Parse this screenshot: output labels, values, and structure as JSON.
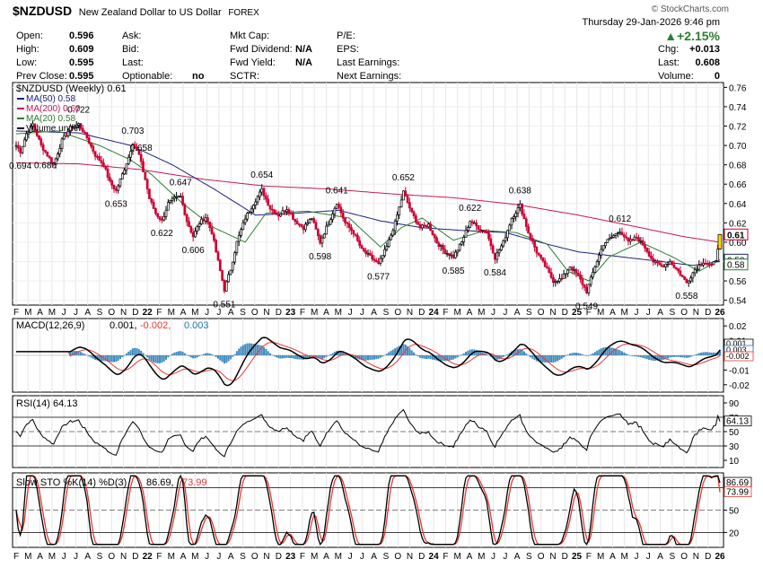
{
  "header": {
    "symbol": "$NZDUSD",
    "name": "New Zealand Dollar to US Dollar",
    "exchange": "FOREX",
    "brand": "© StockCharts.com",
    "date_line": "Thursday   29-Jan-2026   9:46 pm",
    "change_pct": "▲+2.15%",
    "stats": {
      "open_label": "Open:",
      "open": "0.596",
      "high_label": "High:",
      "high": "0.609",
      "low_label": "Low:",
      "low": "0.595",
      "prev_label": "Prev Close:",
      "prev": "0.595",
      "ask_label": "Ask:",
      "bid_label": "Bid:",
      "last_label2": "Last:",
      "optionable_label": "Optionable:",
      "optionable": "no",
      "mktcap_label": "Mkt Cap:",
      "fwddiv_label": "Fwd Dividend:",
      "fwddiv": "N/A",
      "fwdyield_label": "Fwd Yield:",
      "fwdyield": "N/A",
      "sctr_label": "SCTR:",
      "pe_label": "P/E:",
      "eps_label": "EPS:",
      "lastearn_label": "Last Earnings:",
      "nextearn_label": "Next Earnings:",
      "chg_label": "Chg:",
      "chg": "+0.013",
      "last_label": "Last:",
      "last": "0.608",
      "vol_label": "Volume:",
      "vol": "0"
    }
  },
  "colors": {
    "up": "#000000",
    "down": "#cc0033",
    "ma50": "#1a237e",
    "ma200": "#c2185b",
    "ma20": "#2e7d32",
    "macd": "#000000",
    "signal": "#e53935",
    "hist": "#1f77b4"
  },
  "chart_data": [
    {
      "type": "line",
      "title": "$NZDUSD (Weekly) 0.61",
      "legend": [
        "MA(50) 0.58",
        "MA(200) 0.60",
        "MA(20) 0.58",
        "Volume undef"
      ],
      "y_ticks": [
        "0.76",
        "0.74",
        "0.72",
        "0.70",
        "0.68",
        "0.66",
        "0.64",
        "0.62",
        "0.60",
        "0.58",
        "0.56",
        "0.54"
      ],
      "ylim": [
        0.535,
        0.765
      ],
      "x_ticks": [
        "F",
        "M",
        "A",
        "M",
        "J",
        "J",
        "A",
        "S",
        "O",
        "N",
        "D",
        "22",
        "F",
        "M",
        "A",
        "M",
        "J",
        "J",
        "A",
        "S",
        "O",
        "N",
        "D",
        "23",
        "F",
        "M",
        "A",
        "M",
        "J",
        "J",
        "A",
        "S",
        "O",
        "N",
        "D",
        "24",
        "F",
        "M",
        "A",
        "M",
        "J",
        "J",
        "A",
        "S",
        "O",
        "N",
        "D",
        "25",
        "F",
        "M",
        "A",
        "M",
        "J",
        "J",
        "A",
        "S",
        "O",
        "N",
        "D",
        "26"
      ],
      "price_anchors": [
        [
          0,
          0.7
        ],
        [
          2,
          0.694
        ],
        [
          5,
          0.712
        ],
        [
          8,
          0.722
        ],
        [
          12,
          0.7
        ],
        [
          18,
          0.68
        ],
        [
          22,
          0.705
        ],
        [
          26,
          0.718
        ],
        [
          30,
          0.722
        ],
        [
          34,
          0.708
        ],
        [
          38,
          0.69
        ],
        [
          42,
          0.68
        ],
        [
          45,
          0.662
        ],
        [
          48,
          0.653
        ],
        [
          51,
          0.67
        ],
        [
          54,
          0.688
        ],
        [
          56,
          0.703
        ],
        [
          59,
          0.69
        ],
        [
          62,
          0.665
        ],
        [
          64,
          0.645
        ],
        [
          67,
          0.63
        ],
        [
          70,
          0.622
        ],
        [
          73,
          0.64
        ],
        [
          76,
          0.645
        ],
        [
          79,
          0.647
        ],
        [
          82,
          0.622
        ],
        [
          85,
          0.606
        ],
        [
          88,
          0.62
        ],
        [
          91,
          0.626
        ],
        [
          94,
          0.61
        ],
        [
          97,
          0.58
        ],
        [
          100,
          0.551
        ],
        [
          103,
          0.572
        ],
        [
          106,
          0.6
        ],
        [
          110,
          0.625
        ],
        [
          114,
          0.64
        ],
        [
          118,
          0.654
        ],
        [
          122,
          0.635
        ],
        [
          126,
          0.628
        ],
        [
          130,
          0.635
        ],
        [
          134,
          0.622
        ],
        [
          138,
          0.615
        ],
        [
          142,
          0.625
        ],
        [
          146,
          0.6
        ],
        [
          150,
          0.62
        ],
        [
          154,
          0.641
        ],
        [
          158,
          0.62
        ],
        [
          162,
          0.61
        ],
        [
          166,
          0.592
        ],
        [
          170,
          0.585
        ],
        [
          174,
          0.577
        ],
        [
          178,
          0.595
        ],
        [
          182,
          0.62
        ],
        [
          186,
          0.652
        ],
        [
          190,
          0.63
        ],
        [
          194,
          0.615
        ],
        [
          198,
          0.618
        ],
        [
          202,
          0.6
        ],
        [
          206,
          0.59
        ],
        [
          210,
          0.585
        ],
        [
          214,
          0.6
        ],
        [
          218,
          0.622
        ],
        [
          222,
          0.615
        ],
        [
          226,
          0.61
        ],
        [
          230,
          0.584
        ],
        [
          234,
          0.6
        ],
        [
          238,
          0.625
        ],
        [
          242,
          0.638
        ],
        [
          246,
          0.61
        ],
        [
          250,
          0.59
        ],
        [
          254,
          0.575
        ],
        [
          258,
          0.56
        ],
        [
          262,
          0.562
        ],
        [
          266,
          0.575
        ],
        [
          270,
          0.565
        ],
        [
          274,
          0.549
        ],
        [
          278,
          0.575
        ],
        [
          282,
          0.598
        ],
        [
          286,
          0.605
        ],
        [
          290,
          0.612
        ],
        [
          294,
          0.6
        ],
        [
          298,
          0.605
        ],
        [
          302,
          0.595
        ],
        [
          306,
          0.58
        ],
        [
          310,
          0.575
        ],
        [
          314,
          0.58
        ],
        [
          318,
          0.57
        ],
        [
          322,
          0.558
        ],
        [
          326,
          0.572
        ],
        [
          330,
          0.58
        ],
        [
          334,
          0.575
        ],
        [
          336,
          0.582
        ],
        [
          338,
          0.608
        ]
      ],
      "ma200_anchors": [
        [
          0,
          0.682
        ],
        [
          30,
          0.681
        ],
        [
          60,
          0.675
        ],
        [
          90,
          0.665
        ],
        [
          120,
          0.658
        ],
        [
          150,
          0.655
        ],
        [
          180,
          0.65
        ],
        [
          210,
          0.646
        ],
        [
          240,
          0.639
        ],
        [
          270,
          0.628
        ],
        [
          300,
          0.615
        ],
        [
          320,
          0.606
        ],
        [
          338,
          0.6
        ]
      ],
      "ma50_anchors": [
        [
          0,
          0.715
        ],
        [
          30,
          0.713
        ],
        [
          55,
          0.7
        ],
        [
          75,
          0.68
        ],
        [
          95,
          0.655
        ],
        [
          115,
          0.628
        ],
        [
          135,
          0.63
        ],
        [
          155,
          0.633
        ],
        [
          175,
          0.622
        ],
        [
          195,
          0.615
        ],
        [
          215,
          0.612
        ],
        [
          235,
          0.61
        ],
        [
          255,
          0.598
        ],
        [
          270,
          0.59
        ],
        [
          290,
          0.585
        ],
        [
          310,
          0.58
        ],
        [
          325,
          0.576
        ],
        [
          338,
          0.58
        ]
      ],
      "ma20_anchors": [
        [
          0,
          0.712
        ],
        [
          20,
          0.715
        ],
        [
          40,
          0.7
        ],
        [
          55,
          0.685
        ],
        [
          65,
          0.67
        ],
        [
          80,
          0.64
        ],
        [
          95,
          0.615
        ],
        [
          110,
          0.6
        ],
        [
          120,
          0.63
        ],
        [
          140,
          0.632
        ],
        [
          160,
          0.625
        ],
        [
          175,
          0.595
        ],
        [
          185,
          0.615
        ],
        [
          195,
          0.625
        ],
        [
          210,
          0.602
        ],
        [
          225,
          0.612
        ],
        [
          240,
          0.61
        ],
        [
          255,
          0.598
        ],
        [
          265,
          0.57
        ],
        [
          275,
          0.56
        ],
        [
          285,
          0.585
        ],
        [
          300,
          0.6
        ],
        [
          315,
          0.585
        ],
        [
          328,
          0.57
        ],
        [
          338,
          0.582
        ]
      ],
      "labels": [
        {
          "i": 2,
          "text": "0.694",
          "pos": "below"
        },
        {
          "i": 14,
          "text": "0.680",
          "pos": "below"
        },
        {
          "i": 30,
          "text": "0.722",
          "pos": "above"
        },
        {
          "i": 48,
          "text": "0.653",
          "pos": "below"
        },
        {
          "i": 56,
          "text": "0.703",
          "pos": "above"
        },
        {
          "i": 60,
          "text": "0.658",
          "pos": "above"
        },
        {
          "i": 70,
          "text": "0.622",
          "pos": "below"
        },
        {
          "i": 79,
          "text": "0.647",
          "pos": "above"
        },
        {
          "i": 85,
          "text": "0.606",
          "pos": "below"
        },
        {
          "i": 100,
          "text": "0.551",
          "pos": "below"
        },
        {
          "i": 118,
          "text": "0.654",
          "pos": "above"
        },
        {
          "i": 146,
          "text": "0.598",
          "pos": "below"
        },
        {
          "i": 154,
          "text": "0.641",
          "pos": "above"
        },
        {
          "i": 174,
          "text": "0.577",
          "pos": "below"
        },
        {
          "i": 186,
          "text": "0.652",
          "pos": "above"
        },
        {
          "i": 210,
          "text": "0.585",
          "pos": "below"
        },
        {
          "i": 218,
          "text": "0.622",
          "pos": "above"
        },
        {
          "i": 230,
          "text": "0.584",
          "pos": "below"
        },
        {
          "i": 242,
          "text": "0.638",
          "pos": "above"
        },
        {
          "i": 274,
          "text": "0.549",
          "pos": "below"
        },
        {
          "i": 290,
          "text": "0.612",
          "pos": "above"
        },
        {
          "i": 322,
          "text": "0.558",
          "pos": "below"
        }
      ],
      "last_tags": [
        {
          "value": 0.608,
          "text": "0.61",
          "bold": true
        },
        {
          "value": 0.582,
          "text": "0.58"
        },
        {
          "value": 0.577,
          "text": "0.58"
        }
      ]
    },
    {
      "type": "line",
      "title": "MACD(12,26,9)",
      "legend_values": [
        "0.001,",
        "-0.002,",
        "0.003"
      ],
      "y_ticks": [
        "0.02",
        "0.01",
        "0.00",
        "-0.01",
        "-0.02"
      ],
      "ylim": [
        -0.025,
        0.025
      ],
      "last_tags": [
        "0.001",
        "0.003",
        "-0.002"
      ]
    },
    {
      "type": "line",
      "title": "RSI(14) 64.13",
      "y_ticks": [
        "90",
        "70",
        "50",
        "30",
        "10"
      ],
      "ylim": [
        0,
        100
      ],
      "last_tag": "64.13"
    },
    {
      "type": "line",
      "title": "Slow STO %K(14) %D(3)",
      "legend_values": [
        "86.69,",
        "73.99"
      ],
      "y_ticks": [
        "50",
        "20"
      ],
      "ylim": [
        0,
        100
      ],
      "last_tags": [
        "86.69",
        "73.99"
      ]
    }
  ]
}
